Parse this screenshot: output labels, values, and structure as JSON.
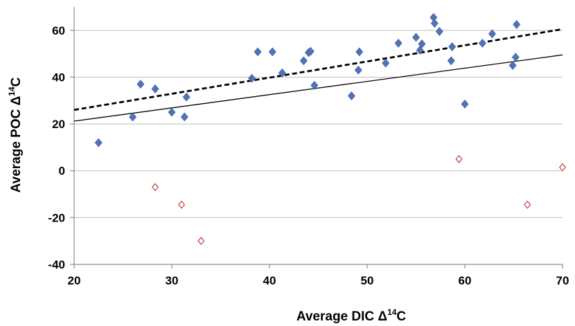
{
  "chart_data": {
    "type": "scatter",
    "xlabel_main": "Average DIC Δ",
    "xlabel_sup": "14",
    "xlabel_end": "C",
    "ylabel_main": "Average POC Δ",
    "ylabel_sup": "14",
    "ylabel_end": "C",
    "xlim": [
      20,
      70
    ],
    "ylim": [
      -40,
      70
    ],
    "x_ticks": [
      "20",
      "30",
      "40",
      "50",
      "60",
      "70"
    ],
    "y_ticks": [
      "-40",
      "-20",
      "0",
      "20",
      "40",
      "60"
    ],
    "x_tick_values": [
      20,
      30,
      40,
      50,
      60,
      70
    ],
    "y_tick_values": [
      -40,
      -20,
      0,
      20,
      40,
      60
    ],
    "grid": "horizontal",
    "colors": {
      "filled": "#4f73b5",
      "open": "#c0504d",
      "grid": "#bdbdbd"
    },
    "series": [
      {
        "marker": "filled-diamond",
        "points": [
          [
            22.5,
            12
          ],
          [
            26,
            23
          ],
          [
            26.8,
            37
          ],
          [
            28.3,
            35
          ],
          [
            30,
            25
          ],
          [
            31.3,
            23
          ],
          [
            31.5,
            31.5
          ],
          [
            38.2,
            39.5
          ],
          [
            38.8,
            50.8
          ],
          [
            40.3,
            50.8
          ],
          [
            41.3,
            41.8
          ],
          [
            43.5,
            47
          ],
          [
            44,
            50.5
          ],
          [
            44.2,
            51
          ],
          [
            44.6,
            36.5
          ],
          [
            48.4,
            32
          ],
          [
            49.1,
            43
          ],
          [
            49.2,
            50.8
          ],
          [
            51.9,
            46
          ],
          [
            53.2,
            54.5
          ],
          [
            55,
            57
          ],
          [
            55.4,
            51.5
          ],
          [
            55.6,
            54.2
          ],
          [
            56.8,
            65.5
          ],
          [
            56.9,
            63
          ],
          [
            57.4,
            59.5
          ],
          [
            58.6,
            47
          ],
          [
            58.7,
            53
          ],
          [
            60,
            28.5
          ],
          [
            61.8,
            54.5
          ],
          [
            62.8,
            58.5
          ],
          [
            64.9,
            45
          ],
          [
            65.2,
            48.5
          ],
          [
            65.3,
            62.5
          ]
        ]
      },
      {
        "marker": "open-diamond",
        "points": [
          [
            28.3,
            -7
          ],
          [
            31,
            -14.5
          ],
          [
            33,
            -30
          ],
          [
            59.4,
            5
          ],
          [
            66.4,
            -14.5
          ],
          [
            70,
            1.5
          ]
        ]
      }
    ],
    "trendlines": [
      {
        "style": "dashed",
        "from": [
          20,
          26
        ],
        "to": [
          70,
          60.5
        ]
      },
      {
        "style": "solid",
        "from": [
          20,
          21.2
        ],
        "to": [
          70,
          49.5
        ]
      }
    ]
  }
}
